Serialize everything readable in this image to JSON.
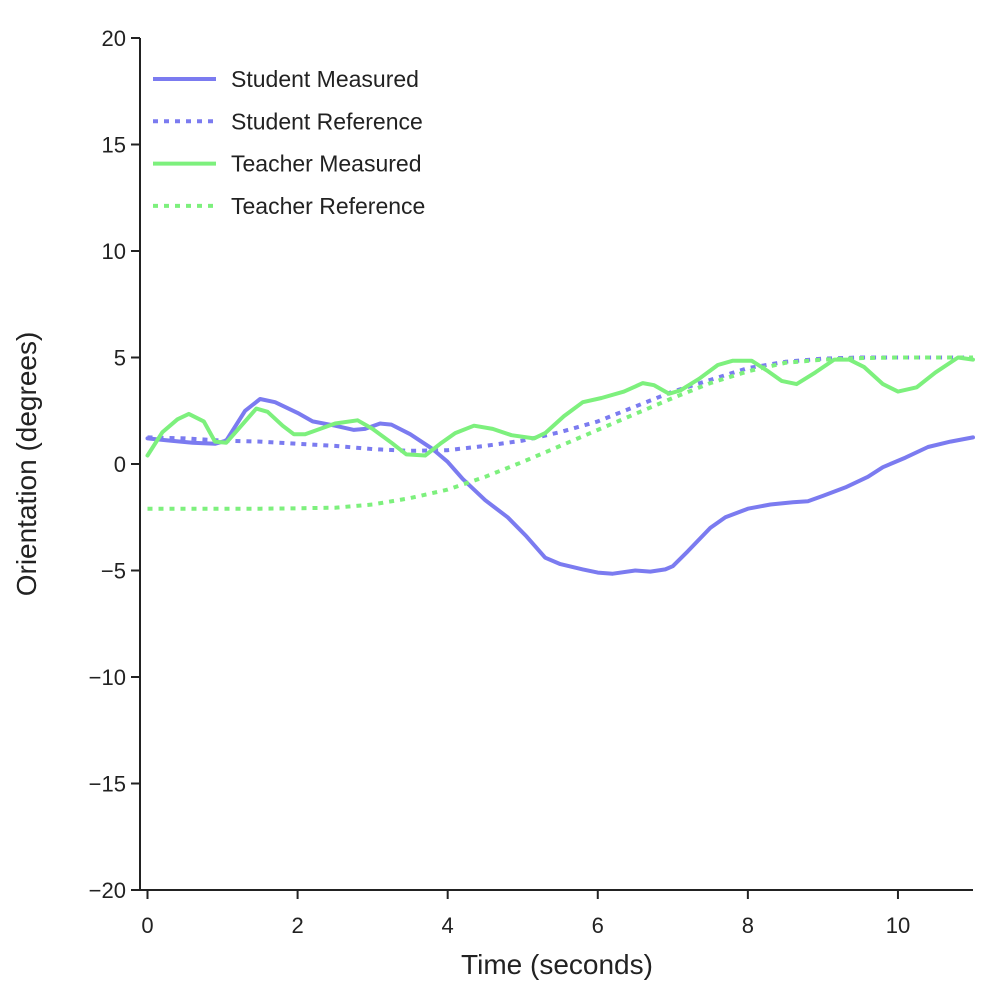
{
  "chart_data": {
    "type": "line",
    "title": "",
    "xlabel": "Time (seconds)",
    "ylabel": "Orientation (degrees)",
    "xlim": [
      -0.1,
      11
    ],
    "ylim": [
      -20,
      20
    ],
    "xticks": [
      0,
      2,
      4,
      6,
      8,
      10
    ],
    "yticks": [
      -20,
      -15,
      -10,
      -5,
      0,
      5,
      10,
      15,
      20
    ],
    "xtick_labels": [
      "0",
      "2",
      "4",
      "6",
      "8",
      "10"
    ],
    "ytick_labels": [
      "−20",
      "−15",
      "−10",
      "−5",
      "0",
      "5",
      "10",
      "15",
      "20"
    ],
    "grid": false,
    "legend_position": "top-left",
    "series": [
      {
        "name": "Student Measured",
        "color": "#7b7bf0",
        "style": "solid",
        "points": [
          [
            0,
            1.2
          ],
          [
            0.3,
            1.1
          ],
          [
            0.6,
            1.0
          ],
          [
            0.9,
            0.95
          ],
          [
            1.05,
            1.1
          ],
          [
            1.3,
            2.5
          ],
          [
            1.5,
            3.05
          ],
          [
            1.7,
            2.9
          ],
          [
            2.0,
            2.4
          ],
          [
            2.2,
            2.0
          ],
          [
            2.5,
            1.8
          ],
          [
            2.75,
            1.6
          ],
          [
            2.9,
            1.65
          ],
          [
            3.1,
            1.9
          ],
          [
            3.25,
            1.85
          ],
          [
            3.5,
            1.4
          ],
          [
            3.8,
            0.7
          ],
          [
            4.0,
            0.1
          ],
          [
            4.2,
            -0.7
          ],
          [
            4.5,
            -1.7
          ],
          [
            4.8,
            -2.5
          ],
          [
            5.05,
            -3.4
          ],
          [
            5.3,
            -4.4
          ],
          [
            5.5,
            -4.7
          ],
          [
            5.8,
            -4.95
          ],
          [
            6.0,
            -5.1
          ],
          [
            6.2,
            -5.15
          ],
          [
            6.5,
            -5.0
          ],
          [
            6.7,
            -5.05
          ],
          [
            6.9,
            -4.95
          ],
          [
            7.0,
            -4.8
          ],
          [
            7.2,
            -4.1
          ],
          [
            7.5,
            -3.0
          ],
          [
            7.7,
            -2.5
          ],
          [
            8.0,
            -2.1
          ],
          [
            8.3,
            -1.9
          ],
          [
            8.6,
            -1.8
          ],
          [
            8.8,
            -1.75
          ],
          [
            9.0,
            -1.5
          ],
          [
            9.3,
            -1.1
          ],
          [
            9.6,
            -0.6
          ],
          [
            9.8,
            -0.15
          ],
          [
            10.1,
            0.3
          ],
          [
            10.4,
            0.8
          ],
          [
            10.7,
            1.05
          ],
          [
            11.0,
            1.25
          ]
        ]
      },
      {
        "name": "Student Reference",
        "color": "#7b7bf0",
        "style": "dotted",
        "points": [
          [
            0,
            1.25
          ],
          [
            0.5,
            1.2
          ],
          [
            1.0,
            1.1
          ],
          [
            1.5,
            1.05
          ],
          [
            2.0,
            0.95
          ],
          [
            2.5,
            0.85
          ],
          [
            3.0,
            0.7
          ],
          [
            3.5,
            0.62
          ],
          [
            4.0,
            0.65
          ],
          [
            4.5,
            0.85
          ],
          [
            5.0,
            1.1
          ],
          [
            5.5,
            1.5
          ],
          [
            6.0,
            2.0
          ],
          [
            6.5,
            2.7
          ],
          [
            7.0,
            3.4
          ],
          [
            7.5,
            3.95
          ],
          [
            8.0,
            4.5
          ],
          [
            8.5,
            4.8
          ],
          [
            9.0,
            4.95
          ],
          [
            9.5,
            5.0
          ],
          [
            10.0,
            5.0
          ],
          [
            11.0,
            5.0
          ]
        ]
      },
      {
        "name": "Teacher Measured",
        "color": "#7df07d",
        "style": "solid",
        "points": [
          [
            0,
            0.4
          ],
          [
            0.2,
            1.5
          ],
          [
            0.4,
            2.1
          ],
          [
            0.55,
            2.35
          ],
          [
            0.75,
            2.0
          ],
          [
            0.9,
            1.05
          ],
          [
            1.05,
            1.0
          ],
          [
            1.2,
            1.6
          ],
          [
            1.45,
            2.6
          ],
          [
            1.6,
            2.45
          ],
          [
            1.8,
            1.8
          ],
          [
            1.95,
            1.4
          ],
          [
            2.1,
            1.4
          ],
          [
            2.3,
            1.65
          ],
          [
            2.5,
            1.9
          ],
          [
            2.8,
            2.05
          ],
          [
            3.0,
            1.65
          ],
          [
            3.25,
            1.0
          ],
          [
            3.45,
            0.45
          ],
          [
            3.7,
            0.4
          ],
          [
            3.9,
            0.95
          ],
          [
            4.1,
            1.45
          ],
          [
            4.35,
            1.8
          ],
          [
            4.6,
            1.65
          ],
          [
            4.85,
            1.35
          ],
          [
            5.15,
            1.2
          ],
          [
            5.3,
            1.45
          ],
          [
            5.55,
            2.25
          ],
          [
            5.8,
            2.9
          ],
          [
            6.05,
            3.1
          ],
          [
            6.35,
            3.4
          ],
          [
            6.6,
            3.8
          ],
          [
            6.75,
            3.7
          ],
          [
            6.95,
            3.3
          ],
          [
            7.1,
            3.45
          ],
          [
            7.35,
            4.0
          ],
          [
            7.6,
            4.65
          ],
          [
            7.8,
            4.85
          ],
          [
            8.05,
            4.85
          ],
          [
            8.25,
            4.4
          ],
          [
            8.45,
            3.9
          ],
          [
            8.65,
            3.75
          ],
          [
            8.9,
            4.3
          ],
          [
            9.15,
            4.9
          ],
          [
            9.35,
            4.9
          ],
          [
            9.55,
            4.55
          ],
          [
            9.8,
            3.75
          ],
          [
            10.0,
            3.4
          ],
          [
            10.25,
            3.6
          ],
          [
            10.5,
            4.3
          ],
          [
            10.8,
            5.0
          ],
          [
            11.0,
            4.9
          ]
        ]
      },
      {
        "name": "Teacher Reference",
        "color": "#7df07d",
        "style": "dotted",
        "points": [
          [
            0,
            -2.1
          ],
          [
            0.5,
            -2.1
          ],
          [
            1.0,
            -2.1
          ],
          [
            1.5,
            -2.1
          ],
          [
            2.0,
            -2.08
          ],
          [
            2.5,
            -2.05
          ],
          [
            3.0,
            -1.9
          ],
          [
            3.5,
            -1.6
          ],
          [
            4.0,
            -1.2
          ],
          [
            4.5,
            -0.6
          ],
          [
            5.0,
            0.1
          ],
          [
            5.5,
            0.85
          ],
          [
            6.0,
            1.6
          ],
          [
            6.5,
            2.35
          ],
          [
            7.0,
            3.1
          ],
          [
            7.5,
            3.8
          ],
          [
            8.0,
            4.35
          ],
          [
            8.5,
            4.75
          ],
          [
            9.0,
            4.9
          ],
          [
            9.5,
            4.97
          ],
          [
            10.0,
            5.0
          ],
          [
            11.0,
            5.0
          ]
        ]
      }
    ]
  }
}
